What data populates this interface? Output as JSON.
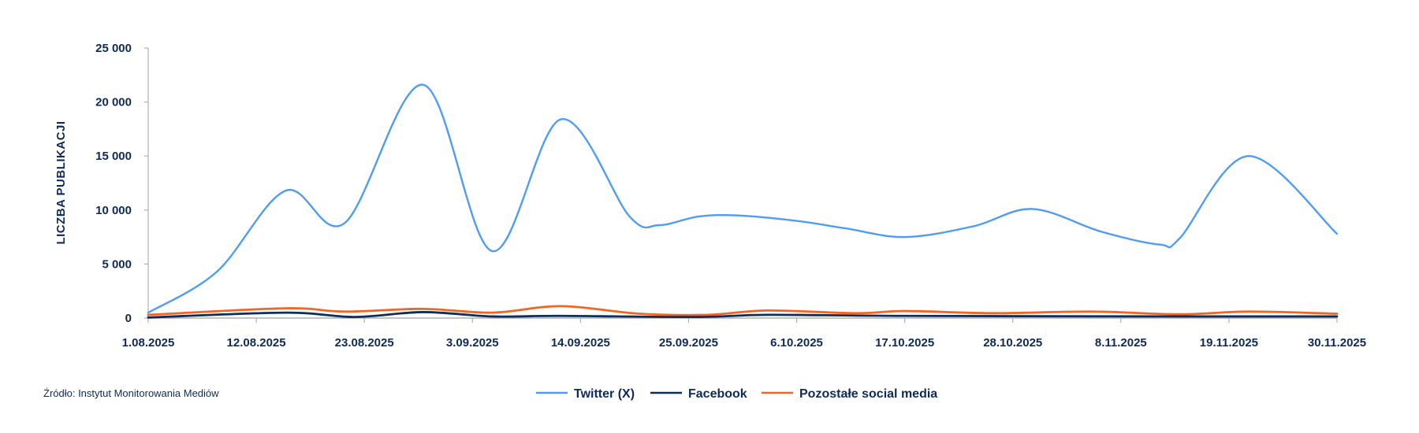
{
  "source": "Źródło: Instytut Monitorowania Mediów",
  "chart_data": {
    "type": "line",
    "title": "",
    "xlabel": "",
    "ylabel": "LICZBA PUBLIKACJI",
    "ylim": [
      0,
      25000
    ],
    "yticks": [
      0,
      5000,
      10000,
      15000,
      20000,
      25000
    ],
    "ytick_labels": [
      "0",
      "5 000",
      "10 000",
      "15 000",
      "20 000",
      "25 000"
    ],
    "xlim": [
      "1.08.2025",
      "30.11.2025"
    ],
    "xtick_labels": [
      "1.08.2025",
      "12.08.2025",
      "23.08.2025",
      "3.09.2025",
      "14.09.2025",
      "25.09.2025",
      "6.10.2025",
      "17.10.2025",
      "28.10.2025",
      "8.11.2025",
      "19.11.2025",
      "30.11.2025"
    ],
    "grid": false,
    "smooth": true,
    "legend_position": "bottom",
    "series": [
      {
        "name": "Twitter (X)",
        "color": "#4f9cf5",
        "points": [
          [
            "1.08.2025",
            500
          ],
          [
            "8.08.2025",
            4300
          ],
          [
            "15.08.2025",
            11800
          ],
          [
            "21.08.2025",
            8800
          ],
          [
            "29.08.2025",
            21600
          ],
          [
            "5.09.2025",
            6200
          ],
          [
            "12.09.2025",
            18400
          ],
          [
            "19.09.2025",
            9400
          ],
          [
            "22.09.2025",
            8600
          ],
          [
            "26.09.2025",
            9400
          ],
          [
            "30.09.2025",
            9500
          ],
          [
            "6.10.2025",
            9000
          ],
          [
            "11.10.2025",
            8300
          ],
          [
            "17.10.2025",
            7500
          ],
          [
            "24.10.2025",
            8500
          ],
          [
            "30.10.2025",
            10100
          ],
          [
            "6.11.2025",
            8000
          ],
          [
            "12.11.2025",
            6800
          ],
          [
            "14.11.2025",
            7400
          ],
          [
            "21.11.2025",
            15000
          ],
          [
            "30.11.2025",
            7800
          ]
        ]
      },
      {
        "name": "Facebook",
        "color": "#0d2e5c",
        "points": [
          [
            "1.08.2025",
            50
          ],
          [
            "15.08.2025",
            500
          ],
          [
            "22.08.2025",
            100
          ],
          [
            "29.08.2025",
            550
          ],
          [
            "5.09.2025",
            150
          ],
          [
            "12.09.2025",
            200
          ],
          [
            "26.09.2025",
            100
          ],
          [
            "3.10.2025",
            300
          ],
          [
            "17.10.2025",
            200
          ],
          [
            "14.11.2025",
            150
          ],
          [
            "30.11.2025",
            150
          ]
        ]
      },
      {
        "name": "Pozostałe social media",
        "color": "#f26522",
        "points": [
          [
            "1.08.2025",
            300
          ],
          [
            "15.08.2025",
            900
          ],
          [
            "21.08.2025",
            600
          ],
          [
            "29.08.2025",
            850
          ],
          [
            "5.09.2025",
            500
          ],
          [
            "12.09.2025",
            1100
          ],
          [
            "20.09.2025",
            400
          ],
          [
            "27.09.2025",
            300
          ],
          [
            "3.10.2025",
            700
          ],
          [
            "12.10.2025",
            450
          ],
          [
            "17.10.2025",
            650
          ],
          [
            "26.10.2025",
            450
          ],
          [
            "5.11.2025",
            600
          ],
          [
            "14.11.2025",
            350
          ],
          [
            "21.11.2025",
            600
          ],
          [
            "30.11.2025",
            400
          ]
        ]
      }
    ]
  }
}
